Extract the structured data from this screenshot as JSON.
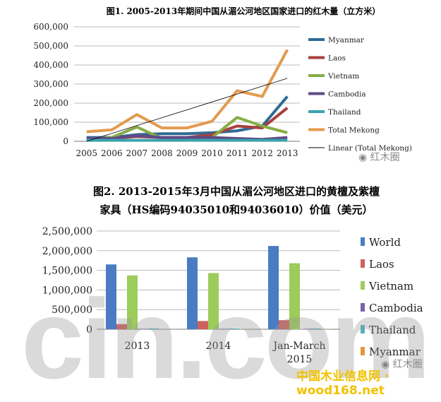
{
  "chart_data": [
    {
      "type": "line",
      "title": "图1. 2005-2013年期间中国从湄公河地区国家进口的红木量（立方米）",
      "categories": [
        "2005",
        "2006",
        "2007",
        "2008",
        "2009",
        "2010",
        "2011",
        "2012",
        "2013"
      ],
      "ylim": [
        0,
        600000
      ],
      "yticks": [
        0,
        100000,
        200000,
        300000,
        400000,
        500000,
        600000
      ],
      "ytick_labels": [
        "0",
        "100,000",
        "200,000",
        "300,000",
        "400,000",
        "500,000",
        "600,000"
      ],
      "grid": true,
      "legend_position": "right",
      "series": [
        {
          "name": "Myanmar",
          "color": "#2e6b93",
          "values": [
            20000,
            20000,
            35000,
            40000,
            40000,
            45000,
            55000,
            80000,
            235000
          ]
        },
        {
          "name": "Laos",
          "color": "#a8403f",
          "values": [
            15000,
            15000,
            25000,
            20000,
            20000,
            35000,
            80000,
            70000,
            175000
          ]
        },
        {
          "name": "Vietnam",
          "color": "#86ad45",
          "values": [
            10000,
            20000,
            75000,
            15000,
            15000,
            20000,
            125000,
            80000,
            45000
          ]
        },
        {
          "name": "Cambodia",
          "color": "#5f4a86",
          "values": [
            15000,
            15000,
            30000,
            20000,
            20000,
            20000,
            15000,
            10000,
            20000
          ]
        },
        {
          "name": "Thailand",
          "color": "#3aa3ad",
          "values": [
            5000,
            5000,
            5000,
            5000,
            5000,
            5000,
            5000,
            5000,
            5000
          ]
        },
        {
          "name": "Total Mekong",
          "color": "#e39a4f",
          "values": [
            50000,
            60000,
            140000,
            70000,
            70000,
            105000,
            265000,
            235000,
            480000
          ]
        },
        {
          "name": "Linear (Total Mekong)",
          "color": "#000000",
          "values": [
            0,
            41250,
            82500,
            123750,
            165000,
            206250,
            247500,
            288750,
            330000
          ],
          "trendline": true
        }
      ]
    },
    {
      "type": "bar",
      "title": "图2. 2013-2015年3月中国从湄公河地区进口的黄檀及紫檀",
      "title_line2": "家具（HS编码94035010和94036010）价值（美元）",
      "categories": [
        "2013",
        "2014",
        "Jan-March 2015"
      ],
      "ylim": [
        0,
        2500000
      ],
      "yticks": [
        0,
        500000,
        1000000,
        1500000,
        2000000,
        2500000
      ],
      "ytick_labels": [
        "0",
        "500,000",
        "1,000,000",
        "1,500,000",
        "2,000,000",
        "2,500,000"
      ],
      "grid": true,
      "legend_position": "right",
      "series": [
        {
          "name": "World",
          "color": "#4a7cc4",
          "values": [
            1650000,
            1830000,
            2120000
          ]
        },
        {
          "name": "Laos",
          "color": "#d0605c",
          "values": [
            130000,
            210000,
            230000
          ]
        },
        {
          "name": "Vietnam",
          "color": "#9ccc5a",
          "values": [
            1370000,
            1430000,
            1680000
          ]
        },
        {
          "name": "Cambodia",
          "color": "#7a62a6",
          "values": [
            10000,
            10000,
            10000
          ]
        },
        {
          "name": "Thailand",
          "color": "#4fb3c0",
          "values": [
            20000,
            20000,
            20000
          ]
        },
        {
          "name": "Myanmar",
          "color": "#e8953f",
          "values": [
            5000,
            5000,
            5000
          ]
        }
      ]
    }
  ],
  "watermarks": {
    "wechat_1": "红木圈",
    "wechat_2": "红木圈",
    "site_big": "cin.com",
    "site_name": "中国木业信息网 · wood168.net"
  }
}
